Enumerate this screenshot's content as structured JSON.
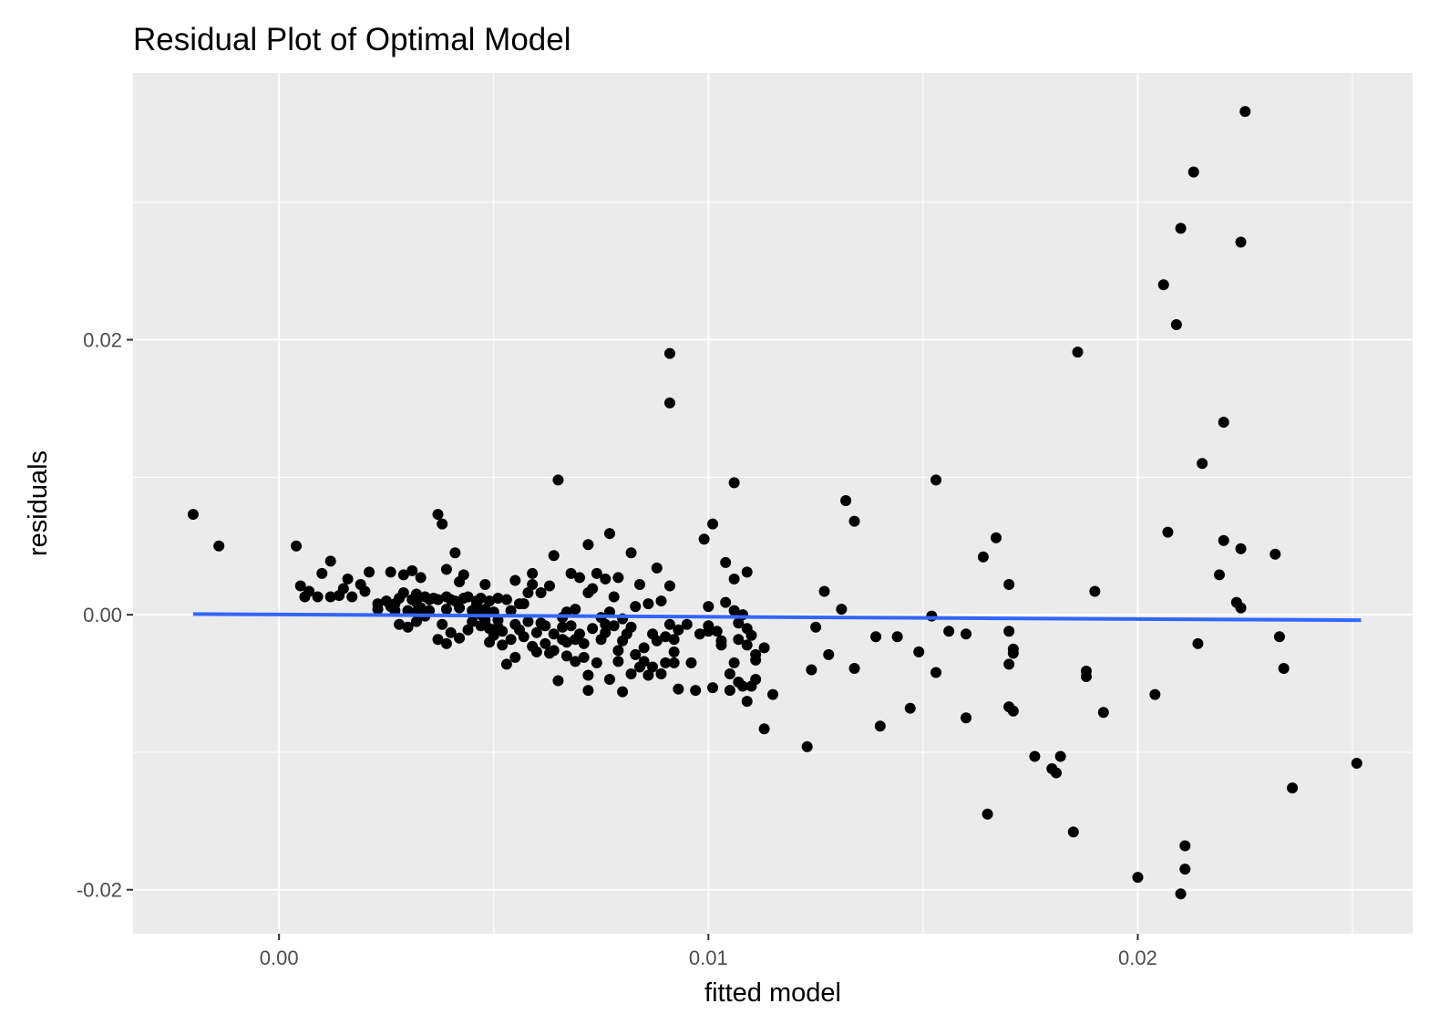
{
  "chart_data": {
    "type": "scatter",
    "title": "Residual Plot of Optimal Model",
    "xlabel": "fitted model",
    "ylabel": "residuals",
    "xlim": [
      -0.0034,
      0.0264
    ],
    "ylim": [
      -0.0232,
      0.0394
    ],
    "x_ticks": [
      0.0,
      0.01,
      0.02
    ],
    "x_tick_labels": [
      "0.00",
      "0.01",
      "0.02"
    ],
    "y_ticks": [
      -0.02,
      0.0,
      0.02
    ],
    "y_tick_labels": [
      "-0.02",
      "0.00",
      "0.02"
    ],
    "grid": true,
    "background": "#ebebeb",
    "point_color": "#000000",
    "line_color": "#3366ff",
    "fit_line": {
      "x": [
        -0.002,
        0.0252
      ],
      "y": [
        5e-05,
        -0.0004
      ]
    },
    "points": [
      [
        -0.002,
        0.0073
      ],
      [
        -0.0014,
        0.005
      ],
      [
        0.0004,
        0.005
      ],
      [
        0.0005,
        0.0021
      ],
      [
        0.0006,
        0.0013
      ],
      [
        0.0007,
        0.0017
      ],
      [
        0.0009,
        0.0013
      ],
      [
        0.001,
        0.003
      ],
      [
        0.0012,
        0.0013
      ],
      [
        0.0012,
        0.0039
      ],
      [
        0.0014,
        0.0014
      ],
      [
        0.0015,
        0.0019
      ],
      [
        0.0016,
        0.0026
      ],
      [
        0.0017,
        0.0013
      ],
      [
        0.0019,
        0.0022
      ],
      [
        0.002,
        0.0017
      ],
      [
        0.0021,
        0.0031
      ],
      [
        0.0023,
        0.0008
      ],
      [
        0.0023,
        0.0004
      ],
      [
        0.0025,
        0.001
      ],
      [
        0.0026,
        0.0006
      ],
      [
        0.0026,
        0.0031
      ],
      [
        0.0027,
        0.0003
      ],
      [
        0.0027,
        0.0008
      ],
      [
        0.0028,
        -0.0007
      ],
      [
        0.0028,
        0.0012
      ],
      [
        0.0029,
        0.0016
      ],
      [
        0.0029,
        0.0029
      ],
      [
        0.003,
        -0.0009
      ],
      [
        0.003,
        0.0003
      ],
      [
        0.0031,
        0.0011
      ],
      [
        0.0031,
        0.0032
      ],
      [
        0.0032,
        0.0002
      ],
      [
        0.0032,
        0.0009
      ],
      [
        0.0032,
        0.0015
      ],
      [
        0.0032,
        -0.0005
      ],
      [
        0.0033,
        0.0027
      ],
      [
        0.0033,
        0.0005
      ],
      [
        0.0034,
        0.0013
      ],
      [
        0.0034,
        -0.0001
      ],
      [
        0.0035,
        0.0011
      ],
      [
        0.0035,
        0.0003
      ],
      [
        0.0036,
        0.0012
      ],
      [
        0.0037,
        0.0011
      ],
      [
        0.0037,
        -0.0018
      ],
      [
        0.0037,
        0.0073
      ],
      [
        0.0038,
        0.0066
      ],
      [
        0.0038,
        -0.0007
      ],
      [
        0.0039,
        -0.0021
      ],
      [
        0.0039,
        0.0033
      ],
      [
        0.0039,
        0.0013
      ],
      [
        0.0039,
        0.0004
      ],
      [
        0.004,
        -0.0013
      ],
      [
        0.004,
        0.0011
      ],
      [
        0.0041,
        0.001
      ],
      [
        0.0041,
        0.0045
      ],
      [
        0.0042,
        -0.0017
      ],
      [
        0.0042,
        0.0005
      ],
      [
        0.0042,
        0.0024
      ],
      [
        0.0043,
        0.0012
      ],
      [
        0.0043,
        0.0029
      ],
      [
        0.0044,
        -0.0011
      ],
      [
        0.0044,
        0.0013
      ],
      [
        0.0045,
        0.0003
      ],
      [
        0.0045,
        -0.0005
      ],
      [
        0.0046,
        0.001
      ],
      [
        0.0046,
        0.0007
      ],
      [
        0.0047,
        -0.0008
      ],
      [
        0.0047,
        0.0012
      ],
      [
        0.0047,
        0.0
      ],
      [
        0.0048,
        0.0004
      ],
      [
        0.0048,
        0.0022
      ],
      [
        0.0048,
        -0.0004
      ],
      [
        0.0049,
        -0.001
      ],
      [
        0.0049,
        0.001
      ],
      [
        0.0049,
        -0.002
      ],
      [
        0.005,
        0.0002
      ],
      [
        0.005,
        -0.0015
      ],
      [
        0.0051,
        -0.0009
      ],
      [
        0.0051,
        0.0012
      ],
      [
        0.0051,
        -0.0004
      ],
      [
        0.0052,
        -0.0022
      ],
      [
        0.0052,
        -0.0012
      ],
      [
        0.0053,
        0.0011
      ],
      [
        0.0053,
        -0.0036
      ],
      [
        0.0054,
        0.0003
      ],
      [
        0.0054,
        -0.0018
      ],
      [
        0.0055,
        0.0025
      ],
      [
        0.0055,
        -0.0007
      ],
      [
        0.0055,
        -0.0031
      ],
      [
        0.0056,
        -0.0011
      ],
      [
        0.0056,
        0.0008
      ],
      [
        0.0057,
        0.0008
      ],
      [
        0.0057,
        -0.0016
      ],
      [
        0.0058,
        -0.0005
      ],
      [
        0.0058,
        0.0016
      ],
      [
        0.0059,
        0.0022
      ],
      [
        0.0059,
        0.003
      ],
      [
        0.0059,
        -0.0023
      ],
      [
        0.006,
        -0.0013
      ],
      [
        0.006,
        -0.0027
      ],
      [
        0.0061,
        0.0016
      ],
      [
        0.0061,
        -0.0006
      ],
      [
        0.0062,
        -0.0008
      ],
      [
        0.0062,
        -0.0021
      ],
      [
        0.0063,
        -0.0028
      ],
      [
        0.0063,
        0.0021
      ],
      [
        0.0064,
        0.0043
      ],
      [
        0.0064,
        -0.0014
      ],
      [
        0.0064,
        -0.0026
      ],
      [
        0.0065,
        0.0098
      ],
      [
        0.0065,
        -0.0048
      ],
      [
        0.0066,
        -0.0018
      ],
      [
        0.0066,
        -0.0009
      ],
      [
        0.0066,
        -0.0002
      ],
      [
        0.0067,
        -0.003
      ],
      [
        0.0067,
        0.0002
      ],
      [
        0.0067,
        -0.002
      ],
      [
        0.0068,
        0.003
      ],
      [
        0.0068,
        -0.0008
      ],
      [
        0.0069,
        -0.0034
      ],
      [
        0.0069,
        0.0004
      ],
      [
        0.0069,
        -0.0018
      ],
      [
        0.007,
        -0.0014
      ],
      [
        0.007,
        0.0027
      ],
      [
        0.0071,
        -0.0021
      ],
      [
        0.0071,
        -0.0031
      ],
      [
        0.0072,
        0.0051
      ],
      [
        0.0072,
        -0.0044
      ],
      [
        0.0072,
        -0.0055
      ],
      [
        0.0072,
        0.0016
      ],
      [
        0.0073,
        -0.001
      ],
      [
        0.0073,
        0.0019
      ],
      [
        0.0074,
        0.003
      ],
      [
        0.0074,
        -0.0035
      ],
      [
        0.0075,
        -0.0002
      ],
      [
        0.0075,
        -0.0018
      ],
      [
        0.0076,
        0.0026
      ],
      [
        0.0076,
        -0.0007
      ],
      [
        0.0076,
        -0.0013
      ],
      [
        0.0077,
        0.0059
      ],
      [
        0.0077,
        -0.0047
      ],
      [
        0.0077,
        0.0002
      ],
      [
        0.0078,
        -0.0008
      ],
      [
        0.0078,
        0.0013
      ],
      [
        0.0079,
        -0.0026
      ],
      [
        0.0079,
        0.0027
      ],
      [
        0.0079,
        -0.0034
      ],
      [
        0.008,
        -0.0019
      ],
      [
        0.008,
        -0.0056
      ],
      [
        0.008,
        -0.0003
      ],
      [
        0.0081,
        -0.0014
      ],
      [
        0.0082,
        0.0045
      ],
      [
        0.0082,
        -0.0043
      ],
      [
        0.0082,
        -0.0009
      ],
      [
        0.0083,
        0.0006
      ],
      [
        0.0083,
        -0.0029
      ],
      [
        0.0084,
        -0.0038
      ],
      [
        0.0084,
        0.0022
      ],
      [
        0.0085,
        -0.0024
      ],
      [
        0.0085,
        -0.0034
      ],
      [
        0.0086,
        0.0008
      ],
      [
        0.0086,
        -0.0044
      ],
      [
        0.0087,
        -0.0014
      ],
      [
        0.0087,
        -0.0038
      ],
      [
        0.0088,
        0.0034
      ],
      [
        0.0088,
        -0.0019
      ],
      [
        0.0089,
        0.001
      ],
      [
        0.0089,
        -0.0043
      ],
      [
        0.009,
        -0.0035
      ],
      [
        0.009,
        -0.0016
      ],
      [
        0.0091,
        0.0021
      ],
      [
        0.0091,
        -0.0007
      ],
      [
        0.0091,
        0.019
      ],
      [
        0.0091,
        0.0154
      ],
      [
        0.0092,
        -0.0027
      ],
      [
        0.0092,
        -0.0035
      ],
      [
        0.0092,
        -0.0018
      ],
      [
        0.0093,
        -0.0054
      ],
      [
        0.0093,
        -0.0011
      ],
      [
        0.0095,
        -0.0007
      ],
      [
        0.0096,
        -0.0035
      ],
      [
        0.0097,
        -0.0055
      ],
      [
        0.0098,
        -0.0014
      ],
      [
        0.0099,
        0.0055
      ],
      [
        0.01,
        -0.0008
      ],
      [
        0.01,
        -0.0012
      ],
      [
        0.01,
        0.0006
      ],
      [
        0.0101,
        0.0066
      ],
      [
        0.0101,
        -0.0053
      ],
      [
        0.0102,
        -0.0012
      ],
      [
        0.0103,
        -0.0019
      ],
      [
        0.0104,
        0.0038
      ],
      [
        0.0105,
        -0.0043
      ],
      [
        0.0106,
        0.0026
      ],
      [
        0.0106,
        0.0003
      ],
      [
        0.0106,
        0.0096
      ],
      [
        0.0107,
        -0.0049
      ],
      [
        0.0107,
        -0.0018
      ],
      [
        0.0108,
        -0.0052
      ],
      [
        0.0108,
        0.0
      ],
      [
        0.0109,
        -0.001
      ],
      [
        0.0109,
        -0.0063
      ],
      [
        0.011,
        -0.0015
      ],
      [
        0.011,
        -0.0052
      ],
      [
        0.0111,
        -0.0033
      ],
      [
        0.0111,
        -0.0047
      ],
      [
        0.0111,
        -0.0029
      ],
      [
        0.0113,
        -0.0024
      ],
      [
        0.0113,
        -0.0083
      ],
      [
        0.0103,
        -0.0022
      ],
      [
        0.0104,
        0.0009
      ],
      [
        0.0105,
        -0.0055
      ],
      [
        0.0106,
        -0.0035
      ],
      [
        0.0107,
        -0.0006
      ],
      [
        0.0109,
        0.0031
      ],
      [
        0.0109,
        -0.0022
      ],
      [
        0.0115,
        -0.0058
      ],
      [
        0.0123,
        -0.0096
      ],
      [
        0.0124,
        -0.004
      ],
      [
        0.0125,
        -0.0009
      ],
      [
        0.0127,
        0.0017
      ],
      [
        0.0128,
        -0.0029
      ],
      [
        0.0131,
        0.0004
      ],
      [
        0.0132,
        0.0083
      ],
      [
        0.0134,
        -0.0039
      ],
      [
        0.0134,
        0.0068
      ],
      [
        0.0139,
        -0.0016
      ],
      [
        0.014,
        -0.0081
      ],
      [
        0.0144,
        -0.0016
      ],
      [
        0.0147,
        -0.0068
      ],
      [
        0.0149,
        -0.0027
      ],
      [
        0.0152,
        -0.0001
      ],
      [
        0.0153,
        0.0098
      ],
      [
        0.0153,
        -0.0042
      ],
      [
        0.0156,
        -0.0012
      ],
      [
        0.016,
        -0.0014
      ],
      [
        0.016,
        -0.0075
      ],
      [
        0.0164,
        0.0042
      ],
      [
        0.0165,
        -0.0145
      ],
      [
        0.0167,
        0.0056
      ],
      [
        0.017,
        0.0022
      ],
      [
        0.017,
        -0.0012
      ],
      [
        0.017,
        -0.0036
      ],
      [
        0.017,
        -0.0067
      ],
      [
        0.0171,
        -0.0025
      ],
      [
        0.0171,
        -0.0028
      ],
      [
        0.0171,
        -0.007
      ],
      [
        0.0176,
        -0.0103
      ],
      [
        0.018,
        -0.0112
      ],
      [
        0.0181,
        -0.0115
      ],
      [
        0.0182,
        -0.0103
      ],
      [
        0.0185,
        -0.0158
      ],
      [
        0.0186,
        0.0191
      ],
      [
        0.0188,
        -0.0041
      ],
      [
        0.0188,
        -0.0045
      ],
      [
        0.019,
        0.0017
      ],
      [
        0.0192,
        -0.0071
      ],
      [
        0.02,
        -0.0191
      ],
      [
        0.0204,
        -0.0058
      ],
      [
        0.0206,
        0.024
      ],
      [
        0.0207,
        0.006
      ],
      [
        0.0209,
        0.0211
      ],
      [
        0.021,
        0.0281
      ],
      [
        0.021,
        -0.0203
      ],
      [
        0.0211,
        -0.0185
      ],
      [
        0.0211,
        -0.0168
      ],
      [
        0.0213,
        0.0322
      ],
      [
        0.0214,
        -0.0021
      ],
      [
        0.0215,
        0.011
      ],
      [
        0.0219,
        0.0029
      ],
      [
        0.022,
        0.0054
      ],
      [
        0.022,
        0.014
      ],
      [
        0.0223,
        0.0009
      ],
      [
        0.0224,
        0.0005
      ],
      [
        0.0224,
        0.0271
      ],
      [
        0.0224,
        0.0048
      ],
      [
        0.0225,
        0.0366
      ],
      [
        0.0232,
        0.0044
      ],
      [
        0.0233,
        -0.0016
      ],
      [
        0.0234,
        -0.0039
      ],
      [
        0.0236,
        -0.0126
      ],
      [
        0.0251,
        -0.0108
      ]
    ]
  }
}
